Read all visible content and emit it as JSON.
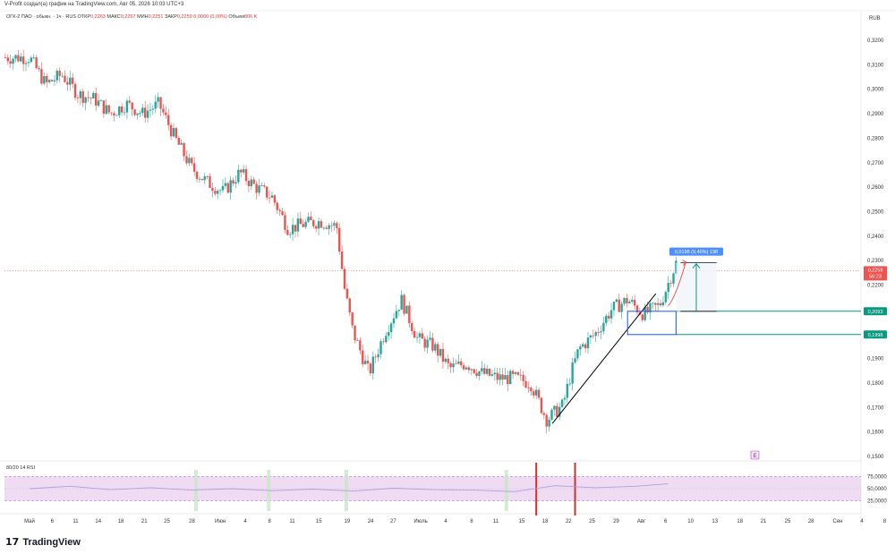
{
  "header": {
    "attribution": "V-Profit создал(а) график на TradingView.com, Авг 05, 2026 10:03 UTC+3",
    "symbol": "ОГК-2 ПАО · обыкн. · 1ч · RUS",
    "open_label": "ОТКР",
    "open_value": "0,2263",
    "high_label": "МАКС",
    "high_value": "0,2267",
    "low_label": "МИН",
    "low_value": "0,2251",
    "close_label": "ЗАКР",
    "close_value": "0,2259 0,0000 (0,00%)",
    "volume_label": "Объем",
    "volume_value": "806 K",
    "currency": "RUB"
  },
  "rsi": {
    "label": "80/20 14 RSI"
  },
  "annotations": {
    "measure_label": "0,0198 (9,40%) 198",
    "price_tag": "0,2259",
    "price_tag_sub": "56:23",
    "level1": "0,2093",
    "level2": "0,1998",
    "e_icon": "E"
  },
  "brand": {
    "logo_mark": "17",
    "name": "TradingView"
  },
  "colors": {
    "up": "#26a69a",
    "down": "#ef5350",
    "price_line": "#ef5350",
    "level": "#089981",
    "box": "#2962ff",
    "rsi_band": "#e1bee7",
    "rsi_line": "#b39ddb",
    "red_marker": "#d32f2f",
    "green_marker": "#c8e6c9",
    "measure": "#4c8dff"
  },
  "chart_data": [
    {
      "type": "line",
      "ylim": [
        0.15,
        0.32
      ],
      "y_ticks": [
        "0,3200",
        "0,3100",
        "0,3000",
        "0,2900",
        "0,2800",
        "0,2700",
        "0,2600",
        "0,2500",
        "0,2400",
        "0,2300",
        "0,2200",
        "0,2100",
        "0,2000",
        "0,1900",
        "0,1800",
        "0,1700",
        "0,1600",
        "0,1500"
      ],
      "y_tick_values": [
        0.32,
        0.31,
        0.3,
        0.29,
        0.28,
        0.27,
        0.26,
        0.25,
        0.24,
        0.23,
        0.22,
        0.21,
        0.2,
        0.19,
        0.18,
        0.17,
        0.16,
        0.15
      ],
      "x_ticks": [
        "Май",
        "6",
        "11",
        "14",
        "18",
        "21",
        "25",
        "28",
        "Июн",
        "4",
        "8",
        "11",
        "15",
        "19",
        "24",
        "27",
        "Июль",
        "4",
        "8",
        "11",
        "15",
        "18",
        "22",
        "25",
        "29",
        "Авг",
        "6",
        "10",
        "13",
        "18",
        "21",
        "25",
        "28",
        "Сен",
        "4",
        "8"
      ],
      "x_tick_positions": [
        0.0,
        0.028,
        0.057,
        0.085,
        0.113,
        0.142,
        0.17,
        0.201,
        0.236,
        0.267,
        0.297,
        0.325,
        0.358,
        0.393,
        0.422,
        0.45,
        0.484,
        0.515,
        0.547,
        0.577,
        0.609,
        0.638,
        0.667,
        0.696,
        0.726,
        0.757,
        0.787,
        0.818,
        0.848,
        0.879,
        0.908,
        0.938,
        0.967,
        1.0,
        1.03,
        1.058
      ],
      "series": [
        {
          "x": [
            0.0,
            0.02,
            0.04,
            0.06,
            0.08,
            0.1,
            0.12,
            0.14,
            0.16,
            0.18,
            0.2,
            0.22,
            0.24,
            0.26,
            0.28,
            0.3,
            0.32,
            0.34,
            0.36,
            0.38,
            0.39,
            0.4,
            0.42,
            0.44,
            0.46,
            0.48,
            0.5,
            0.52,
            0.54,
            0.56,
            0.58,
            0.6,
            0.62,
            0.64,
            0.66,
            0.67,
            0.68,
            0.7,
            0.72,
            0.74,
            0.76,
            0.78,
            0.8
          ],
          "values": [
            0.313,
            0.302,
            0.306,
            0.298,
            0.296,
            0.29,
            0.294,
            0.29,
            0.294,
            0.28,
            0.268,
            0.262,
            0.258,
            0.266,
            0.26,
            0.256,
            0.243,
            0.245,
            0.246,
            0.244,
            0.218,
            0.201,
            0.184,
            0.201,
            0.214,
            0.198,
            0.195,
            0.186,
            0.188,
            0.184,
            0.182,
            0.182,
            0.18,
            0.165,
            0.171,
            0.184,
            0.194,
            0.2,
            0.21,
            0.214,
            0.208,
            0.212,
            0.229
          ]
        }
      ],
      "annotations": [
        {
          "type": "trendline",
          "x": [
            0.647,
            0.775
          ],
          "y": [
            0.1635,
            0.2165
          ]
        },
        {
          "type": "hline",
          "y": 0.2093,
          "label": "0,2093"
        },
        {
          "type": "hline",
          "y": 0.1998,
          "label": "0,1998"
        },
        {
          "type": "box",
          "x": [
            0.74,
            0.8
          ],
          "y": [
            0.1998,
            0.2093
          ]
        },
        {
          "type": "measure",
          "x": [
            0.8,
            0.85
          ],
          "y": [
            0.2093,
            0.2291
          ],
          "label": "0,0198 (9,40%) 198"
        },
        {
          "type": "price",
          "y": 0.2259,
          "label": "0,2259"
        }
      ]
    },
    {
      "type": "line",
      "title": "80/20 14 RSI",
      "ylim": [
        15,
        85
      ],
      "y_ticks": [
        "75,0000",
        "50,0000",
        "25,0000"
      ],
      "y_tick_values": [
        75,
        50,
        25
      ],
      "series": [
        {
          "x": [
            0.0,
            0.05,
            0.1,
            0.15,
            0.2,
            0.25,
            0.3,
            0.35,
            0.4,
            0.45,
            0.5,
            0.55,
            0.6,
            0.65,
            0.7,
            0.75,
            0.79
          ],
          "values": [
            50,
            55,
            48,
            52,
            47,
            50,
            46,
            49,
            45,
            51,
            48,
            47,
            44,
            56,
            52,
            55,
            60
          ]
        }
      ]
    }
  ]
}
